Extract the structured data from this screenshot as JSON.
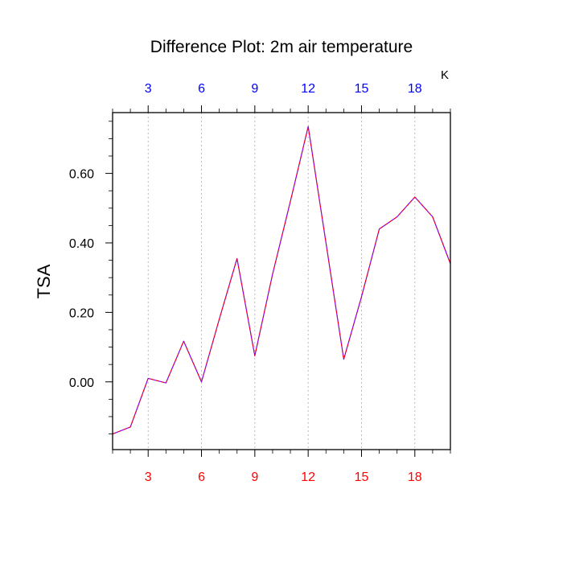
{
  "chart_data": {
    "type": "line",
    "title": "Difference Plot: 2m air temperature",
    "ylabel": "TSA",
    "units_label": "K",
    "x": [
      1,
      2,
      3,
      4,
      5,
      6,
      7,
      8,
      9,
      10,
      11,
      12,
      13,
      14,
      15,
      16,
      17,
      18,
      19,
      20
    ],
    "series": [
      {
        "values": [
          -0.15,
          -0.13,
          0.01,
          -0.003,
          0.117,
          0.0,
          0.18,
          0.355,
          0.075,
          0.31,
          0.52,
          0.735,
          0.4,
          0.065,
          0.245,
          0.44,
          0.475,
          0.532,
          0.475,
          0.34
        ],
        "color": "#7f00ff",
        "dash_color": "#ff0000",
        "style": "dashed"
      }
    ],
    "xlim": [
      1,
      20
    ],
    "ylim": [
      -0.195,
      0.775
    ],
    "x_ticks": [
      3,
      6,
      9,
      12,
      15,
      18
    ],
    "x_tick_labels_bottom": [
      "3",
      "6",
      "9",
      "12",
      "15",
      "18"
    ],
    "x_tick_labels_top": [
      "3",
      "6",
      "9",
      "12",
      "15",
      "18"
    ],
    "y_ticks": [
      0.0,
      0.2,
      0.4,
      0.6
    ],
    "y_tick_labels": [
      "0.00",
      "0.20",
      "0.40",
      "0.60"
    ],
    "y_minor_step": 0.05,
    "vertical_grid": true,
    "colors": {
      "bottom_axis_labels": "#ff0000",
      "top_axis_labels": "#0000ff",
      "grid": "#aaaaaa",
      "frame": "#000000"
    }
  }
}
